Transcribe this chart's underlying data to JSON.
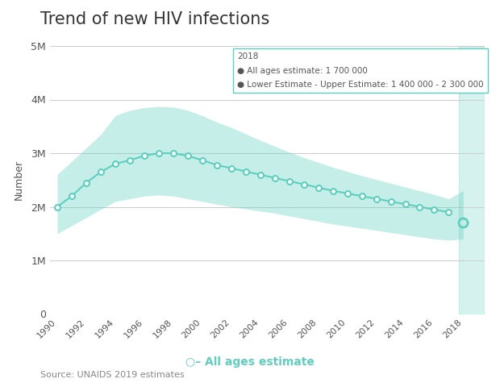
{
  "title": "Trend of new HIV infections",
  "ylabel": "Number",
  "xlabel_legend": "All ages estimate",
  "source": "Source: UNAIDS 2019 estimates",
  "legend_box": {
    "year": "2018",
    "estimate_label": "All ages estimate: ",
    "estimate_value": "1 700 000",
    "range_label": "Lower Estimate - Upper Estimate: 1 400 000 - 2 300 000"
  },
  "years": [
    1990,
    1991,
    1992,
    1993,
    1994,
    1995,
    1996,
    1997,
    1998,
    1999,
    2000,
    2001,
    2002,
    2003,
    2004,
    2005,
    2006,
    2007,
    2008,
    2009,
    2010,
    2011,
    2012,
    2013,
    2014,
    2015,
    2016,
    2017,
    2018
  ],
  "estimate": [
    2000000,
    2200000,
    2450000,
    2650000,
    2800000,
    2870000,
    2950000,
    3000000,
    3000000,
    2950000,
    2870000,
    2780000,
    2720000,
    2660000,
    2600000,
    2540000,
    2480000,
    2420000,
    2360000,
    2300000,
    2250000,
    2200000,
    2150000,
    2100000,
    2050000,
    2000000,
    1950000,
    1900000,
    1700000
  ],
  "lower": [
    1500000,
    1650000,
    1800000,
    1950000,
    2100000,
    2150000,
    2200000,
    2220000,
    2200000,
    2150000,
    2100000,
    2050000,
    2000000,
    1960000,
    1920000,
    1880000,
    1830000,
    1780000,
    1730000,
    1680000,
    1640000,
    1600000,
    1560000,
    1520000,
    1480000,
    1440000,
    1400000,
    1380000,
    1400000
  ],
  "upper": [
    2600000,
    2850000,
    3100000,
    3350000,
    3700000,
    3800000,
    3850000,
    3870000,
    3860000,
    3800000,
    3700000,
    3580000,
    3480000,
    3360000,
    3240000,
    3130000,
    3020000,
    2920000,
    2830000,
    2740000,
    2660000,
    2580000,
    2510000,
    2440000,
    2370000,
    2300000,
    2230000,
    2150000,
    2300000
  ],
  "ylim": [
    0,
    5000000
  ],
  "yticks": [
    0,
    1000000,
    2000000,
    3000000,
    4000000,
    5000000
  ],
  "ytick_labels": [
    "0",
    "1M",
    "2M",
    "3M",
    "4M",
    "5M"
  ],
  "xticks": [
    1990,
    1992,
    1994,
    1996,
    1998,
    2000,
    2002,
    2004,
    2006,
    2008,
    2010,
    2012,
    2014,
    2016,
    2018
  ],
  "xlim": [
    1989.5,
    2019.5
  ],
  "colors": {
    "fill": "#5ecfbf",
    "line": "#5ecfbf",
    "marker_face": "#ffffff",
    "marker_edge": "#5ecfbf",
    "last_marker_face": "#c8eae6",
    "last_marker_edge": "#5ecfbf",
    "highlight_col": "#5ecfbf",
    "grid": "#cccccc",
    "title": "#333333",
    "text": "#555555",
    "source": "#888888",
    "legend_border": "#5ecfbf",
    "legend_text": "#555555"
  },
  "fill_alpha": 0.35,
  "highlight_alpha": 0.25,
  "figsize": [
    6.2,
    4.75
  ],
  "dpi": 100
}
